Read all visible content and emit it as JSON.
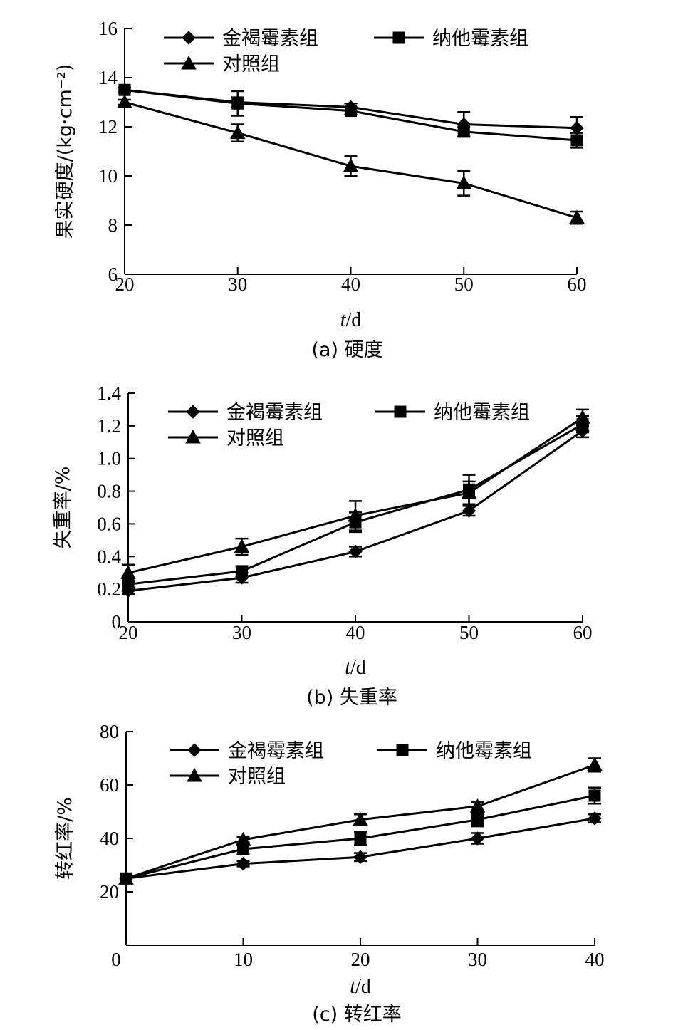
{
  "chart_data": [
    {
      "type": "line",
      "caption": "(a) 硬度",
      "ylabel": "果实硬度/(kg·cm⁻²)",
      "xlabel_italic": "t",
      "xlabel_unit": "/d",
      "xlim": [
        20,
        60
      ],
      "ylim": [
        6,
        16
      ],
      "xticks": [
        20,
        30,
        40,
        50,
        60
      ],
      "yticks": [
        6,
        8,
        10,
        12,
        14,
        16
      ],
      "series": [
        {
          "name": "金褐霉素组",
          "marker": "diamond",
          "x": [
            20,
            30,
            40,
            50,
            60
          ],
          "values": [
            13.5,
            13.0,
            12.8,
            12.1,
            11.95
          ],
          "err": [
            0.1,
            0.2,
            0.15,
            0.5,
            0.45
          ]
        },
        {
          "name": "纳他霉素组",
          "marker": "square",
          "x": [
            20,
            30,
            40,
            50,
            60
          ],
          "values": [
            13.5,
            12.95,
            12.65,
            11.8,
            11.45
          ],
          "err": [
            0.1,
            0.5,
            0.15,
            0.2,
            0.3
          ]
        },
        {
          "name": "对照组",
          "marker": "triangle",
          "x": [
            20,
            30,
            40,
            50,
            60
          ],
          "values": [
            13.0,
            11.75,
            10.4,
            9.7,
            8.3
          ],
          "err": [
            0.1,
            0.35,
            0.4,
            0.5,
            0.25
          ]
        }
      ]
    },
    {
      "type": "line",
      "caption": "(b) 失重率",
      "ylabel": "失重率/%",
      "xlabel_italic": "t",
      "xlabel_unit": "/d",
      "xlim": [
        20,
        60
      ],
      "ylim": [
        0,
        1.4
      ],
      "xticks": [
        20,
        30,
        40,
        50,
        60
      ],
      "yticks": [
        0,
        0.2,
        0.4,
        0.6,
        0.8,
        1.0,
        1.2,
        1.4
      ],
      "yticklabels": [
        "0",
        "0.2",
        "0.4",
        "0.6",
        "0.8",
        "1.0",
        "1.2",
        "1.4"
      ],
      "series": [
        {
          "name": "金褐霉素组",
          "marker": "diamond",
          "x": [
            20,
            30,
            40,
            50,
            60
          ],
          "values": [
            0.19,
            0.27,
            0.43,
            0.68,
            1.17
          ],
          "err": [
            0.02,
            0.03,
            0.03,
            0.03,
            0.04
          ]
        },
        {
          "name": "纳他霉素组",
          "marker": "square",
          "x": [
            20,
            30,
            40,
            50,
            60
          ],
          "values": [
            0.23,
            0.31,
            0.61,
            0.81,
            1.21
          ],
          "err": [
            0.02,
            0.03,
            0.06,
            0.09,
            0.05
          ]
        },
        {
          "name": "对照组",
          "marker": "triangle",
          "x": [
            20,
            30,
            40,
            50,
            60
          ],
          "values": [
            0.3,
            0.46,
            0.65,
            0.79,
            1.25
          ],
          "err": [
            0.05,
            0.05,
            0.09,
            0.07,
            0.05
          ]
        }
      ]
    },
    {
      "type": "line",
      "caption": "(c) 转红率",
      "ylabel": "转红率/%",
      "xlabel_italic": "t",
      "xlabel_unit": "/d",
      "xlim": [
        0,
        40
      ],
      "ylim": [
        0,
        80
      ],
      "xticks": [
        0,
        10,
        20,
        30,
        40
      ],
      "yticks": [
        20,
        40,
        60,
        80
      ],
      "yticklabels": [
        "20",
        "40",
        "60",
        "80"
      ],
      "extra_zero_label": "0",
      "series": [
        {
          "name": "金褐霉素组",
          "marker": "diamond",
          "x": [
            0,
            10,
            20,
            30,
            40
          ],
          "values": [
            25,
            30.5,
            33,
            40,
            47.5
          ],
          "err": [
            0,
            1,
            1.5,
            2,
            1.5
          ]
        },
        {
          "name": "纳他霉素组",
          "marker": "square",
          "x": [
            0,
            10,
            20,
            30,
            40
          ],
          "values": [
            25,
            36,
            40,
            47,
            56
          ],
          "err": [
            0,
            2,
            2.5,
            2.5,
            3
          ]
        },
        {
          "name": "对照组",
          "marker": "triangle",
          "x": [
            0,
            10,
            20,
            30,
            40
          ],
          "values": [
            25,
            39.5,
            47,
            52,
            67.5
          ],
          "err": [
            0,
            1,
            2,
            1.5,
            2.5
          ]
        }
      ]
    }
  ]
}
